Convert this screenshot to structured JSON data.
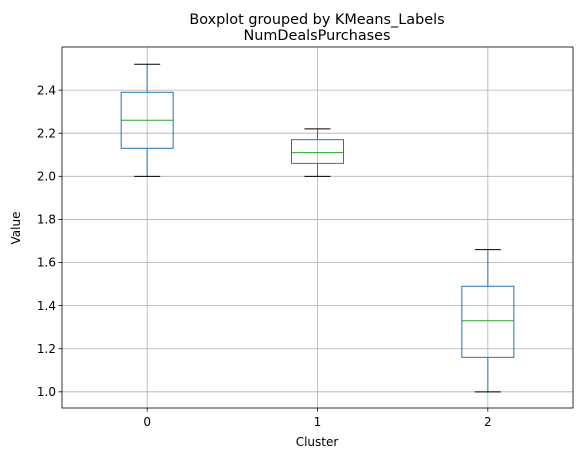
{
  "suptitle": "Boxplot grouped by KMeans_Labels",
  "chart_data": {
    "type": "box",
    "title": "NumDealsPurchases",
    "xlabel": "Cluster",
    "ylabel": "Value",
    "categories": [
      "0",
      "1",
      "2"
    ],
    "yticks": [
      "1.0",
      "1.2",
      "1.4",
      "1.6",
      "1.8",
      "2.0",
      "2.2",
      "2.4"
    ],
    "ylim": [
      0.925,
      2.6
    ],
    "grid": true,
    "boxes": [
      {
        "label": "0",
        "whisker_low": 2.0,
        "q1": 2.13,
        "median": 2.26,
        "q3": 2.39,
        "whisker_high": 2.52
      },
      {
        "label": "1",
        "whisker_low": 2.0,
        "q1": 2.06,
        "median": 2.11,
        "q3": 2.17,
        "whisker_high": 2.22
      },
      {
        "label": "2",
        "whisker_low": 1.0,
        "q1": 1.16,
        "median": 1.33,
        "q3": 1.49,
        "whisker_high": 1.66
      }
    ],
    "colors": {
      "box": "#1f77b4",
      "median": "#2ca02c",
      "whisker_cap": "#000000",
      "grid": "#b0b0b0"
    }
  }
}
